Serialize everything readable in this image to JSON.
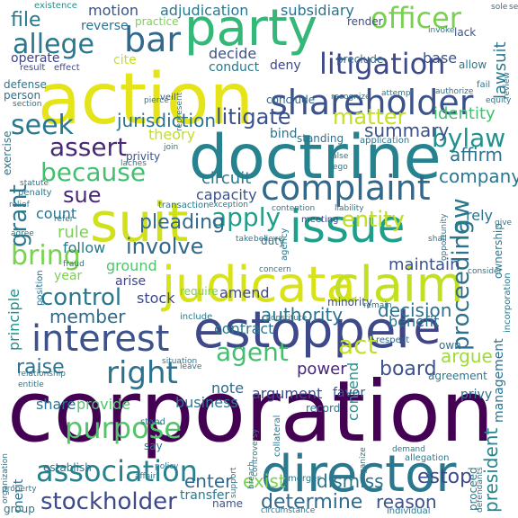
{
  "palette": [
    "#fde725",
    "#b5de2b",
    "#6ece58",
    "#35b779",
    "#1f9e89",
    "#26828e",
    "#31688e",
    "#3e4989",
    "#482878",
    "#440154"
  ],
  "words": [
    {
      "text": "corporation",
      "color": "#440154"
    },
    {
      "text": "action",
      "color": "#e5e419"
    },
    {
      "text": "doctrine",
      "color": "#26828e"
    },
    {
      "text": "suit",
      "color": "#d0e11c"
    },
    {
      "text": "party",
      "color": "#35b779"
    },
    {
      "text": "director",
      "color": "#2a788e"
    },
    {
      "text": "estoppel",
      "color": "#3e4989"
    },
    {
      "text": "issue",
      "color": "#1f9e89"
    },
    {
      "text": "judicata",
      "color": "#d8e219"
    },
    {
      "text": "claim",
      "color": "#c2df23"
    },
    {
      "text": "shareholder",
      "color": "#3b528b"
    },
    {
      "text": "complaint",
      "color": "#31688e"
    },
    {
      "text": "interest",
      "color": "#3b528b"
    },
    {
      "text": "right",
      "color": "#2c728e"
    },
    {
      "text": "re",
      "color": "#414487"
    },
    {
      "text": "association",
      "color": "#26828e"
    },
    {
      "text": "litigation",
      "color": "#3e4989"
    },
    {
      "text": "officer",
      "color": "#7ad151"
    },
    {
      "text": "bar",
      "color": "#31688e"
    },
    {
      "text": "stockholder",
      "color": "#3e4989"
    },
    {
      "text": "because",
      "color": "#44bf70"
    },
    {
      "text": "allege",
      "color": "#2a788e"
    },
    {
      "text": "assert",
      "color": "#482878"
    },
    {
      "text": "bring",
      "color": "#7ad151"
    },
    {
      "text": "proceeding",
      "color": "#2c728e"
    },
    {
      "text": "president",
      "color": "#25858e"
    },
    {
      "text": "purpose",
      "color": "#52c569"
    },
    {
      "text": "entity",
      "color": "#c2df23"
    },
    {
      "text": "apply",
      "color": "#1f9e89"
    },
    {
      "text": "involve",
      "color": "#31688e"
    },
    {
      "text": "control",
      "color": "#2a788e"
    },
    {
      "text": "bylaw",
      "color": "#21918c"
    },
    {
      "text": "law",
      "color": "#2a788e"
    },
    {
      "text": "act",
      "color": "#c2df23"
    },
    {
      "text": "agent",
      "color": "#44bf70"
    },
    {
      "text": "determine",
      "color": "#31688e"
    },
    {
      "text": "seek",
      "color": "#2a788e"
    },
    {
      "text": "litigate",
      "color": "#3b528b"
    },
    {
      "text": "matter",
      "color": "#c2df23"
    },
    {
      "text": "grant",
      "color": "#2a788e"
    },
    {
      "text": "sue",
      "color": "#482878"
    },
    {
      "text": "member",
      "color": "#31688e"
    },
    {
      "text": "file",
      "color": "#2a788e"
    },
    {
      "text": "raise",
      "color": "#2c728e"
    },
    {
      "text": "board",
      "color": "#3b528b"
    },
    {
      "text": "dismiss",
      "color": "#2c728e"
    },
    {
      "text": "exist",
      "color": "#7ad151"
    },
    {
      "text": "reason",
      "color": "#3b528b"
    },
    {
      "text": "estop",
      "color": "#3e4989"
    },
    {
      "text": "enter",
      "color": "#31688e"
    },
    {
      "text": "authority",
      "color": "#2c728e"
    },
    {
      "text": "decision",
      "color": "#2c728e"
    },
    {
      "text": "argue",
      "color": "#a0da39"
    },
    {
      "text": "pleading",
      "color": "#31688e"
    },
    {
      "text": "entity",
      "color": "#c2df23"
    },
    {
      "text": "company",
      "color": "#2a788e"
    },
    {
      "text": "affirm",
      "color": "#2c728e"
    },
    {
      "text": "summary",
      "color": "#3b528b"
    },
    {
      "text": "identity",
      "color": "#44bf70"
    },
    {
      "text": "jurisdiction",
      "color": "#2c728e"
    },
    {
      "text": "theory",
      "color": "#c2df23"
    },
    {
      "text": "circuit",
      "color": "#2a788e"
    },
    {
      "text": "capacity",
      "color": "#3b528b"
    },
    {
      "text": "rule",
      "color": "#7ad151"
    },
    {
      "text": "count",
      "color": "#2c728e"
    },
    {
      "text": "follow",
      "color": "#2a788e"
    },
    {
      "text": "ground",
      "color": "#52c569"
    },
    {
      "text": "stock",
      "color": "#3e4989"
    },
    {
      "text": "amend",
      "color": "#3e4989"
    },
    {
      "text": "maintain",
      "color": "#3b528b"
    },
    {
      "text": "benefit",
      "color": "#2c728e"
    },
    {
      "text": "contract",
      "color": "#2a788e"
    },
    {
      "text": "contend",
      "color": "#21918c"
    },
    {
      "text": "power",
      "color": "#482878"
    },
    {
      "text": "argument",
      "color": "#3e4989"
    },
    {
      "text": "note",
      "color": "#31688e"
    },
    {
      "text": "business",
      "color": "#2a788e"
    },
    {
      "text": "provide",
      "color": "#52c569"
    },
    {
      "text": "share",
      "color": "#2c728e"
    },
    {
      "text": "principle",
      "color": "#21918c"
    },
    {
      "text": "year",
      "color": "#7ad151"
    },
    {
      "text": "arise",
      "color": "#414487"
    },
    {
      "text": "position",
      "color": "#2c728e"
    },
    {
      "text": "lawsuit",
      "color": "#2a788e"
    },
    {
      "text": "management",
      "color": "#2c728e"
    },
    {
      "text": "subsidiary",
      "color": "#2c728e"
    },
    {
      "text": "adjudication",
      "color": "#2a788e"
    },
    {
      "text": "motion",
      "color": "#3b528b"
    },
    {
      "text": "practice",
      "color": "#7ad151"
    },
    {
      "text": "render",
      "color": "#3e4989"
    },
    {
      "text": "reverse",
      "color": "#2c728e"
    },
    {
      "text": "cite",
      "color": "#c2df23"
    },
    {
      "text": "decide",
      "color": "#3b528b"
    },
    {
      "text": "conduct",
      "color": "#2a788e"
    },
    {
      "text": "deny",
      "color": "#3e4989"
    },
    {
      "text": "operate",
      "color": "#414487"
    },
    {
      "text": "result",
      "color": "#3e4989"
    },
    {
      "text": "effect",
      "color": "#3e4989"
    },
    {
      "text": "preclude",
      "color": "#2c728e"
    },
    {
      "text": "base",
      "color": "#3b528b"
    },
    {
      "text": "lack",
      "color": "#3b528b"
    },
    {
      "text": "allow",
      "color": "#2a788e"
    },
    {
      "text": "privity",
      "color": "#3b528b"
    },
    {
      "text": "veil",
      "color": "#3b528b"
    },
    {
      "text": "conclude",
      "color": "#31688e"
    },
    {
      "text": "bind",
      "color": "#2c728e"
    },
    {
      "text": "standing",
      "color": "#2c728e"
    },
    {
      "text": "rely",
      "color": "#2c728e"
    },
    {
      "text": "meeting",
      "color": "#414487"
    },
    {
      "text": "require",
      "color": "#7ad151"
    },
    {
      "text": "minority",
      "color": "#3b528b"
    },
    {
      "text": "respect",
      "color": "#31688e"
    },
    {
      "text": "own",
      "color": "#2c728e"
    },
    {
      "text": "favor",
      "color": "#3b528b"
    },
    {
      "text": "privy",
      "color": "#2c728e"
    },
    {
      "text": "agreement",
      "color": "#2a788e"
    },
    {
      "text": "merit",
      "color": "#2c728e"
    },
    {
      "text": "establish",
      "color": "#2c728e"
    },
    {
      "text": "transfer",
      "color": "#2a788e"
    },
    {
      "text": "name",
      "color": "#3b528b"
    },
    {
      "text": "group",
      "color": "#2a788e"
    },
    {
      "text": "individual",
      "color": "#2a788e"
    },
    {
      "text": "existence",
      "color": "#21918c"
    },
    {
      "text": "defense",
      "color": "#2a788e"
    },
    {
      "text": "person",
      "color": "#2c728e"
    },
    {
      "text": "section",
      "color": "#2c728e"
    },
    {
      "text": "exercise",
      "color": "#2a788e"
    },
    {
      "text": "statute",
      "color": "#2a788e"
    },
    {
      "text": "penalty",
      "color": "#2a788e"
    },
    {
      "text": "relief",
      "color": "#2a788e"
    },
    {
      "text": "agree",
      "color": "#2a788e"
    },
    {
      "text": "refer",
      "color": "#2a788e"
    },
    {
      "text": "fraud",
      "color": "#2a788e"
    },
    {
      "text": "transaction",
      "color": "#2a788e"
    },
    {
      "text": "exception",
      "color": "#2a788e"
    },
    {
      "text": "contention",
      "color": "#2a788e"
    },
    {
      "text": "liability",
      "color": "#2a788e"
    },
    {
      "text": "concern",
      "color": "#2a788e"
    },
    {
      "text": "duty",
      "color": "#2a788e"
    },
    {
      "text": "agency",
      "color": "#2a788e"
    },
    {
      "text": "include",
      "color": "#2a788e"
    },
    {
      "text": "record",
      "color": "#2a788e"
    },
    {
      "text": "collateral",
      "color": "#2a788e"
    },
    {
      "text": "merger",
      "color": "#2a788e"
    },
    {
      "text": "breach",
      "color": "#2a788e"
    },
    {
      "text": "support",
      "color": "#2a788e"
    },
    {
      "text": "say",
      "color": "#2a788e"
    },
    {
      "text": "stand",
      "color": "#2a788e"
    },
    {
      "text": "policy",
      "color": "#2a788e"
    },
    {
      "text": "allegation",
      "color": "#2a788e"
    },
    {
      "text": "demand",
      "color": "#2a788e"
    },
    {
      "text": "proceed",
      "color": "#2a788e"
    },
    {
      "text": "defendants",
      "color": "#2a788e"
    },
    {
      "text": "ownership",
      "color": "#2a788e"
    },
    {
      "text": "incorporation",
      "color": "#2a788e"
    },
    {
      "text": "consider",
      "color": "#2a788e"
    },
    {
      "text": "shall",
      "color": "#2a788e"
    },
    {
      "text": "give",
      "color": "#2a788e"
    },
    {
      "text": "opportunity",
      "color": "#2a788e"
    },
    {
      "text": "sole",
      "color": "#2a788e"
    },
    {
      "text": "invoke",
      "color": "#2a788e"
    },
    {
      "text": "attempt",
      "color": "#2a788e"
    },
    {
      "text": "recognize",
      "color": "#2a788e"
    },
    {
      "text": "represent",
      "color": "#2a788e"
    },
    {
      "text": "pierce",
      "color": "#2a788e"
    },
    {
      "text": "join",
      "color": "#2a788e"
    },
    {
      "text": "laches",
      "color": "#2a788e"
    },
    {
      "text": "application",
      "color": "#2a788e"
    },
    {
      "text": "authorize",
      "color": "#2a788e"
    },
    {
      "text": "equity",
      "color": "#2a788e"
    },
    {
      "text": "fail",
      "color": "#2a788e"
    },
    {
      "text": "review",
      "color": "#2a788e"
    },
    {
      "text": "set",
      "color": "#2a788e"
    },
    {
      "text": "false",
      "color": "#2a788e"
    },
    {
      "text": "ego",
      "color": "#2a788e"
    },
    {
      "text": "take",
      "color": "#2a788e"
    },
    {
      "text": "believe",
      "color": "#2a788e"
    },
    {
      "text": "relationship",
      "color": "#2a788e"
    },
    {
      "text": "situation",
      "color": "#2a788e"
    },
    {
      "text": "entitle",
      "color": "#2a788e"
    },
    {
      "text": "organization",
      "color": "#2a788e"
    },
    {
      "text": "property",
      "color": "#2a788e"
    },
    {
      "text": "circumstance",
      "color": "#2a788e"
    },
    {
      "text": "affair",
      "color": "#2a788e"
    },
    {
      "text": "controversy",
      "color": "#2a788e"
    },
    {
      "text": "organize",
      "color": "#2a788e"
    },
    {
      "text": "leave",
      "color": "#2a788e"
    },
    {
      "text": "constitute",
      "color": "#2a788e"
    },
    {
      "text": "remain",
      "color": "#2a788e"
    }
  ]
}
